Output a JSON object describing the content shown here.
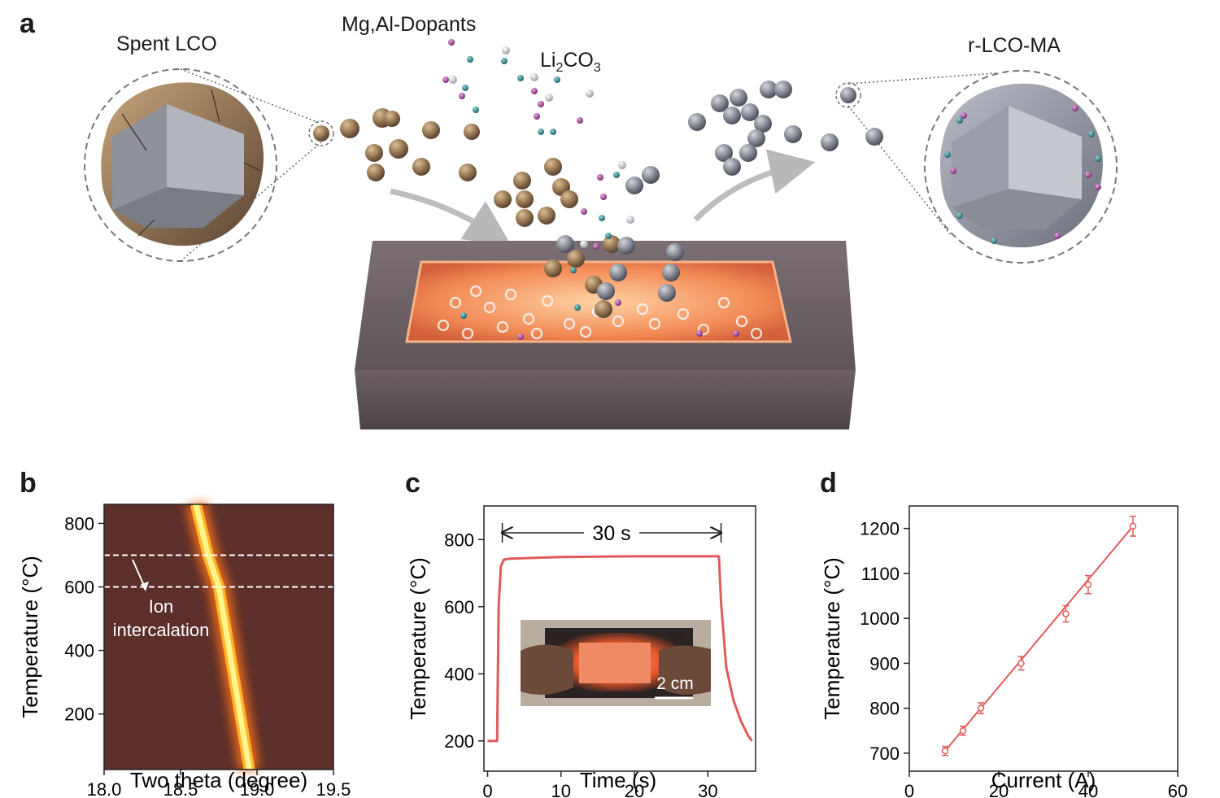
{
  "figure": {
    "panels": [
      {
        "letter": "a"
      },
      {
        "letter": "b"
      },
      {
        "letter": "c"
      },
      {
        "letter": "d"
      }
    ]
  },
  "panel_a": {
    "label_spent": "Spent LCO",
    "label_dopants": "Mg,Al-Dopants",
    "label_li2co3_base": "Li",
    "label_li2co3_sub1": "2",
    "label_li2co3_mid": "CO",
    "label_li2co3_sub2": "3",
    "label_product": "r-LCO-MA",
    "colors": {
      "spent_particle": "#9a7a55",
      "product_particle": "#8a8d98",
      "mg_dopant": "#a24a9a",
      "al_dopant": "#2f8a8c",
      "li_particle": "#c8ccd4",
      "furnace_glow": "#f28a55",
      "furnace_body": "#6e6266"
    },
    "icons": [
      "spent-particle-cutaway-icon",
      "product-particle-cutaway-icon",
      "furnace-boat-icon",
      "arrow-icon"
    ]
  },
  "chart_data": [
    {
      "type": "heatmap",
      "panel": "b",
      "xlabel": "Two theta (degree)",
      "ylabel": "Temperature (°C)",
      "xlim": [
        18.0,
        19.5
      ],
      "ylim": [
        25,
        860
      ],
      "xticks": [
        "18.0",
        "18.5",
        "19.0",
        "19.5"
      ],
      "yticks": [
        "200",
        "400",
        "600",
        "800"
      ],
      "peak_path": {
        "x": [
          18.6,
          18.68,
          18.75,
          18.95
        ],
        "y": [
          860,
          700,
          600,
          25
        ]
      },
      "dashed_lines_y": [
        700,
        600
      ],
      "annotation": {
        "line1": "Ion",
        "line2": "intercalation"
      },
      "colors": {
        "background": "#5c2f2a",
        "peak": "#fff48a"
      }
    },
    {
      "type": "line",
      "panel": "c",
      "xlabel": "Time (s)",
      "ylabel": "Temperature (°C)",
      "xlim": [
        -0.5,
        36.5
      ],
      "ylim": [
        110,
        900
      ],
      "xticks": [
        "0",
        "10",
        "20",
        "30"
      ],
      "yticks": [
        "200",
        "400",
        "600",
        "800"
      ],
      "series": [
        {
          "x": [
            0,
            1.3,
            1.5,
            1.8,
            2.2,
            3,
            10,
            20,
            31.5,
            31.8,
            32.5,
            33.5,
            34.5,
            35.5,
            36
          ],
          "y": [
            200,
            200,
            600,
            720,
            740,
            743,
            748,
            750,
            750,
            610,
            420,
            320,
            260,
            215,
            200
          ]
        }
      ],
      "annotation": "30 s",
      "inset_scale_label": "2 cm",
      "colors": {
        "line": "#e05a5a"
      }
    },
    {
      "type": "scatter",
      "panel": "d",
      "xlabel": "Current (A)",
      "ylabel": "Temperature (°C)",
      "xlim": [
        0,
        60
      ],
      "ylim": [
        660,
        1250
      ],
      "xticks": [
        "0",
        "20",
        "40",
        "60"
      ],
      "yticks": [
        "700",
        "800",
        "900",
        "1000",
        "1100",
        "1200"
      ],
      "x": [
        8,
        12,
        16,
        25,
        35,
        40,
        50
      ],
      "y": [
        705,
        750,
        800,
        900,
        1010,
        1075,
        1205
      ],
      "yerr": [
        10,
        10,
        12,
        15,
        18,
        20,
        22
      ],
      "fit": {
        "x": [
          8,
          50
        ],
        "y": [
          705,
          1205
        ]
      },
      "colors": {
        "marker": "#e05a5a"
      }
    }
  ]
}
